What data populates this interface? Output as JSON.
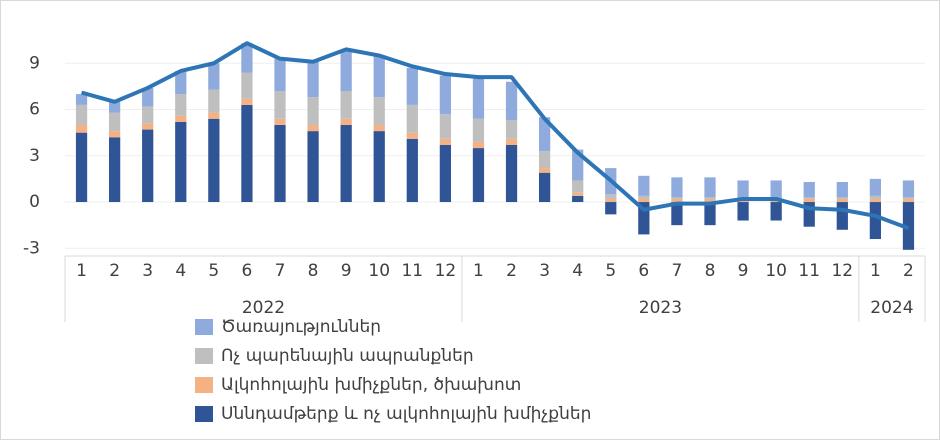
{
  "chart_data": {
    "type": "bar",
    "stacked": true,
    "categories": [
      "1",
      "2",
      "3",
      "4",
      "5",
      "6",
      "7",
      "8",
      "9",
      "10",
      "11",
      "12",
      "1",
      "2",
      "3",
      "4",
      "5",
      "6",
      "7",
      "8",
      "9",
      "10",
      "11",
      "12",
      "1",
      "2"
    ],
    "group_labels": [
      "2022",
      "2023",
      "2024"
    ],
    "group_sizes": [
      12,
      12,
      2
    ],
    "series": [
      {
        "name": "Սննդամթերք և ոչ ալկոհոլային խմիչքներ",
        "color": "#2f5597",
        "values": [
          4.5,
          4.2,
          4.7,
          5.2,
          5.4,
          6.3,
          5.0,
          4.6,
          5.0,
          4.6,
          4.1,
          3.7,
          3.5,
          3.7,
          1.9,
          0.4,
          -0.8,
          -2.1,
          -1.5,
          -1.5,
          -1.2,
          -1.2,
          -1.6,
          -1.8,
          -2.4,
          -3.1
        ]
      },
      {
        "name": "Ալկոհոլային խմիչքներ, ծխախոտ",
        "color": "#f4b183",
        "values": [
          0.5,
          0.4,
          0.4,
          0.4,
          0.4,
          0.4,
          0.4,
          0.4,
          0.4,
          0.4,
          0.4,
          0.4,
          0.4,
          0.4,
          0.3,
          0.2,
          0.2,
          0.2,
          0.2,
          0.2,
          0.2,
          0.2,
          0.2,
          0.2,
          0.2,
          0.2
        ]
      },
      {
        "name": "Ոչ պարենային ապրանքներ",
        "color": "#bfbfbf",
        "values": [
          1.3,
          1.2,
          1.1,
          1.4,
          1.5,
          1.7,
          1.8,
          1.8,
          1.8,
          1.8,
          1.8,
          1.6,
          1.5,
          1.2,
          1.1,
          0.8,
          0.3,
          0.2,
          0.1,
          0.1,
          0,
          0,
          0.1,
          0.1,
          0.2,
          0.1
        ]
      },
      {
        "name": "Ծառայություններ",
        "color": "#8faadc",
        "values": [
          0.7,
          0.7,
          1.2,
          1.5,
          1.7,
          1.9,
          2.1,
          2.3,
          2.7,
          2.7,
          2.4,
          2.5,
          2.6,
          2.5,
          2.2,
          2.0,
          1.7,
          1.3,
          1.3,
          1.3,
          1.2,
          1.2,
          1.0,
          1.0,
          1.1,
          1.1
        ]
      }
    ],
    "line": {
      "color": "#2e75b6",
      "values": [
        7.1,
        6.5,
        7.4,
        8.5,
        9.0,
        10.3,
        9.3,
        9.1,
        9.9,
        9.5,
        8.8,
        8.3,
        8.1,
        8.1,
        5.4,
        3.2,
        1.4,
        -0.5,
        -0.1,
        -0.1,
        0.2,
        0.2,
        -0.4,
        -0.5,
        -0.9,
        -1.7
      ]
    },
    "ylim": [
      -3.5,
      12
    ],
    "yticks": [
      -3,
      0,
      3,
      6,
      9
    ],
    "grid": true
  }
}
